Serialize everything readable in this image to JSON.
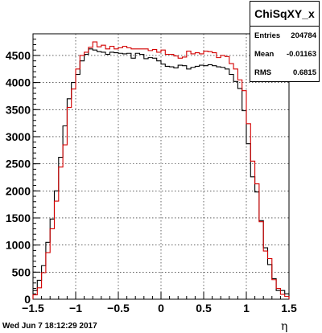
{
  "chart_data": {
    "type": "histogram",
    "title": "ChiSqXY_x",
    "xlabel": "η",
    "ylabel": "",
    "xlim": [
      -1.5,
      1.5
    ],
    "ylim": [
      0,
      4900
    ],
    "grid": true,
    "x_ticks": [
      "−1.5",
      "−1",
      "−0.5",
      "0",
      "0.5",
      "1",
      "1.5"
    ],
    "y_ticks": [
      "0",
      "500",
      "1000",
      "1500",
      "2000",
      "2500",
      "3000",
      "3500",
      "4000",
      "4500"
    ],
    "bin_edges": [
      -1.5,
      -1.45,
      -1.4,
      -1.35,
      -1.3,
      -1.25,
      -1.2,
      -1.15,
      -1.1,
      -1.05,
      -1.0,
      -0.95,
      -0.9,
      -0.85,
      -0.8,
      -0.75,
      -0.7,
      -0.65,
      -0.6,
      -0.55,
      -0.5,
      -0.45,
      -0.4,
      -0.35,
      -0.3,
      -0.25,
      -0.2,
      -0.15,
      -0.1,
      -0.05,
      0.0,
      0.05,
      0.1,
      0.15,
      0.2,
      0.25,
      0.3,
      0.35,
      0.4,
      0.45,
      0.5,
      0.55,
      0.6,
      0.65,
      0.7,
      0.75,
      0.8,
      0.85,
      0.9,
      0.95,
      1.0,
      1.05,
      1.1,
      1.15,
      1.2,
      1.25,
      1.3,
      1.35,
      1.4,
      1.45,
      1.5
    ],
    "series": [
      {
        "color": "#000000",
        "values": [
          160,
          350,
          620,
          1050,
          1480,
          2000,
          2620,
          3200,
          3700,
          4000,
          4150,
          4400,
          4520,
          4620,
          4600,
          4570,
          4560,
          4520,
          4560,
          4550,
          4540,
          4530,
          4540,
          4450,
          4540,
          4520,
          4440,
          4460,
          4450,
          4400,
          4340,
          4300,
          4290,
          4270,
          4320,
          4310,
          4250,
          4280,
          4300,
          4320,
          4310,
          4330,
          4310,
          4290,
          4280,
          4250,
          4150,
          4020,
          3890,
          3480,
          2870,
          2260,
          1980,
          1450,
          950,
          640,
          380,
          160,
          160,
          100
        ]
      },
      {
        "color": "#d40000",
        "values": [
          80,
          210,
          490,
          860,
          1300,
          1810,
          2440,
          2850,
          3540,
          3880,
          4250,
          4500,
          4560,
          4650,
          4750,
          4660,
          4690,
          4620,
          4670,
          4620,
          4640,
          4670,
          4640,
          4620,
          4620,
          4620,
          4620,
          4590,
          4610,
          4560,
          4600,
          4520,
          4520,
          4490,
          4450,
          4470,
          4580,
          4530,
          4550,
          4530,
          4580,
          4570,
          4550,
          4460,
          4500,
          4480,
          4350,
          4250,
          4050,
          3850,
          3240,
          2550,
          2130,
          1430,
          890,
          750,
          360,
          200,
          90,
          50
        ]
      }
    ]
  },
  "stats": {
    "title": "ChiSqXY_x",
    "entries_label": "Entries",
    "entries_value": "204784",
    "mean_label": "Mean",
    "mean_value": "-0.01163",
    "rms_label": "RMS",
    "rms_value": "0.6815"
  },
  "footer": "Wed Jun  7 18:12:29 2017"
}
